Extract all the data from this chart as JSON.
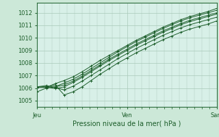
{
  "title": "",
  "xlabel": "Pression niveau de la mer( hPa )",
  "ylabel": "",
  "bg_color": "#cce8d8",
  "plot_bg_color": "#d8f0e8",
  "grid_color": "#a8c8b8",
  "line_color": "#1a5c28",
  "axis_label_color": "#1a5c28",
  "tick_label_color": "#1a5c28",
  "spine_color": "#2a6b3a",
  "ylim": [
    1004.5,
    1012.8
  ],
  "xlim": [
    0,
    48
  ],
  "yticks": [
    1005,
    1006,
    1007,
    1008,
    1009,
    1010,
    1011,
    1012
  ],
  "xtick_positions": [
    0,
    24,
    48
  ],
  "xtick_labels": [
    "Jeu",
    "Ven",
    "Sam"
  ],
  "series": [
    [
      1005.7,
      1006.0,
      1006.1,
      1006.4,
      1006.7,
      1007.1,
      1007.55,
      1008.0,
      1008.45,
      1008.9,
      1009.3,
      1009.7,
      1010.05,
      1010.4,
      1010.75,
      1011.05,
      1011.35,
      1011.6,
      1011.8,
      1012.0,
      1012.2
    ],
    [
      1006.05,
      1006.05,
      1006.1,
      1006.25,
      1006.55,
      1006.95,
      1007.4,
      1007.85,
      1008.3,
      1008.7,
      1009.1,
      1009.5,
      1009.85,
      1010.2,
      1010.55,
      1010.85,
      1011.15,
      1011.4,
      1011.6,
      1011.8,
      1012.0
    ],
    [
      1006.05,
      1006.1,
      1005.95,
      1006.1,
      1006.45,
      1006.85,
      1007.3,
      1007.75,
      1008.2,
      1008.6,
      1009.0,
      1009.4,
      1009.75,
      1010.1,
      1010.45,
      1010.75,
      1011.05,
      1011.3,
      1011.5,
      1011.7,
      1011.9
    ],
    [
      1006.1,
      1006.2,
      1006.05,
      1005.85,
      1006.15,
      1006.55,
      1007.0,
      1007.45,
      1007.9,
      1008.35,
      1008.75,
      1009.15,
      1009.5,
      1009.85,
      1010.2,
      1010.5,
      1010.8,
      1011.05,
      1011.25,
      1011.45,
      1011.65
    ],
    [
      1006.05,
      1006.1,
      1006.25,
      1005.45,
      1005.7,
      1006.1,
      1006.6,
      1007.1,
      1007.55,
      1008.0,
      1008.4,
      1008.8,
      1009.15,
      1009.5,
      1009.85,
      1010.15,
      1010.45,
      1010.7,
      1010.9,
      1011.1,
      1011.35
    ],
    [
      1006.1,
      1006.05,
      1006.35,
      1006.6,
      1006.9,
      1007.3,
      1007.75,
      1008.2,
      1008.6,
      1009.0,
      1009.4,
      1009.8,
      1010.15,
      1010.5,
      1010.85,
      1011.15,
      1011.45,
      1011.7,
      1011.9,
      1012.1,
      1012.35
    ]
  ],
  "marker": "+",
  "marker_size": 2.5,
  "line_width": 0.7,
  "tick_fontsize": 6,
  "xlabel_fontsize": 7
}
